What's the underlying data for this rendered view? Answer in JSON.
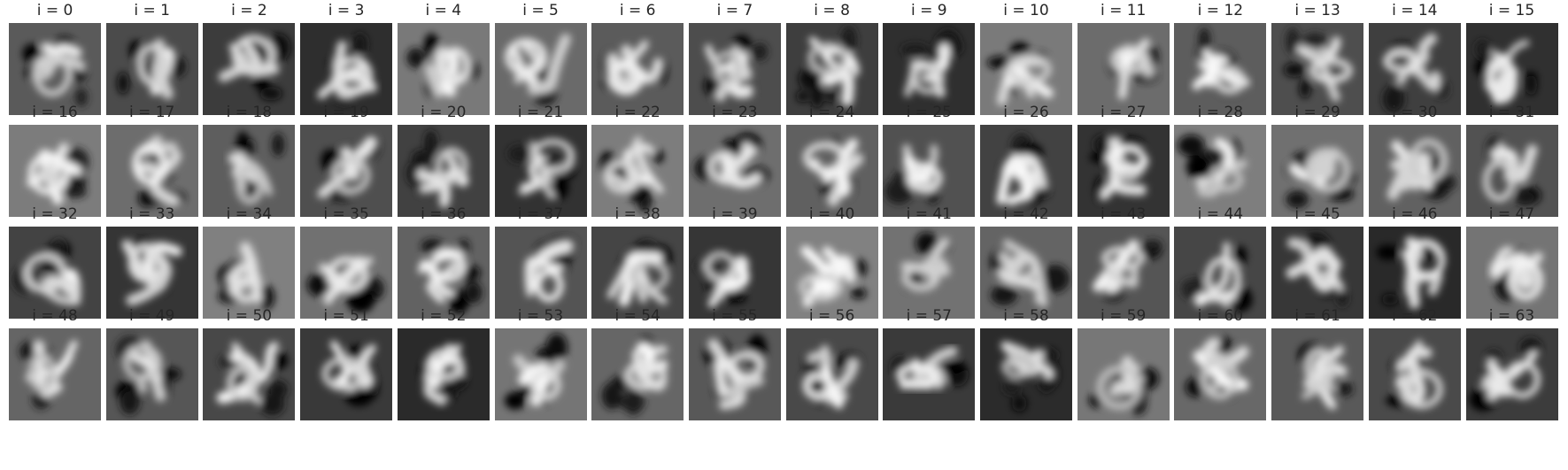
{
  "figure": {
    "colormap": "gray",
    "grid_rows": 4,
    "grid_cols": 16,
    "panels": [
      {
        "title": "i = 0"
      },
      {
        "title": "i = 1"
      },
      {
        "title": "i = 2"
      },
      {
        "title": "i = 3"
      },
      {
        "title": "i = 4"
      },
      {
        "title": "i = 5"
      },
      {
        "title": "i = 6"
      },
      {
        "title": "i = 7"
      },
      {
        "title": "i = 8"
      },
      {
        "title": "i = 9"
      },
      {
        "title": "i = 10"
      },
      {
        "title": "i = 11"
      },
      {
        "title": "i = 12"
      },
      {
        "title": "i = 13"
      },
      {
        "title": "i = 14"
      },
      {
        "title": "i = 15"
      },
      {
        "title": "i = 16"
      },
      {
        "title": "i = 17"
      },
      {
        "title": "i = 18"
      },
      {
        "title": "i = 19"
      },
      {
        "title": "i = 20"
      },
      {
        "title": "i = 21"
      },
      {
        "title": "i = 22"
      },
      {
        "title": "i = 23"
      },
      {
        "title": "i = 24"
      },
      {
        "title": "i = 25"
      },
      {
        "title": "i = 26"
      },
      {
        "title": "i = 27"
      },
      {
        "title": "i = 28"
      },
      {
        "title": "i = 29"
      },
      {
        "title": "i = 30"
      },
      {
        "title": "i = 31"
      },
      {
        "title": "i = 32"
      },
      {
        "title": "i = 33"
      },
      {
        "title": "i = 34"
      },
      {
        "title": "i = 35"
      },
      {
        "title": "i = 36"
      },
      {
        "title": "i = 37"
      },
      {
        "title": "i = 38"
      },
      {
        "title": "i = 39"
      },
      {
        "title": "i = 40"
      },
      {
        "title": "i = 41"
      },
      {
        "title": "i = 42"
      },
      {
        "title": "i = 43"
      },
      {
        "title": "i = 44"
      },
      {
        "title": "i = 45"
      },
      {
        "title": "i = 46"
      },
      {
        "title": "i = 47"
      },
      {
        "title": "i = 48"
      },
      {
        "title": "i = 49"
      },
      {
        "title": "i = 50"
      },
      {
        "title": "i = 51"
      },
      {
        "title": "i = 52"
      },
      {
        "title": "i = 53"
      },
      {
        "title": "i = 54"
      },
      {
        "title": "i = 55"
      },
      {
        "title": "i = 56"
      },
      {
        "title": "i = 57"
      },
      {
        "title": "i = 58"
      },
      {
        "title": "i = 59"
      },
      {
        "title": "i = 60"
      },
      {
        "title": "i = 61"
      },
      {
        "title": "i = 62"
      },
      {
        "title": "i = 63"
      }
    ]
  }
}
